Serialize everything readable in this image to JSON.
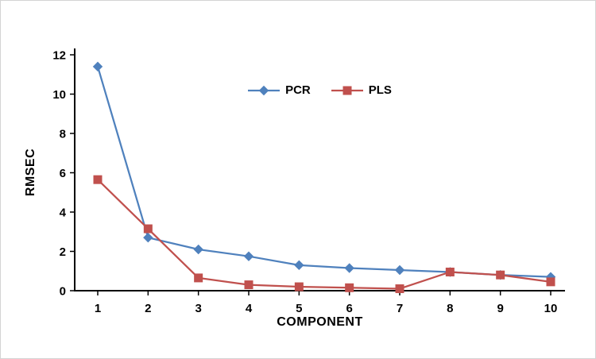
{
  "chart_data": {
    "type": "line",
    "x": [
      1,
      2,
      3,
      4,
      5,
      6,
      7,
      8,
      9,
      10
    ],
    "series": [
      {
        "name": "PCR",
        "color": "#4F81BD",
        "marker": "diamond",
        "values": [
          11.4,
          2.7,
          2.1,
          1.75,
          1.3,
          1.15,
          1.05,
          0.95,
          0.8,
          0.7
        ]
      },
      {
        "name": "PLS",
        "color": "#C0504D",
        "marker": "square",
        "values": [
          5.65,
          3.15,
          0.65,
          0.3,
          0.2,
          0.15,
          0.1,
          0.95,
          0.8,
          0.45
        ]
      }
    ],
    "title": "",
    "xlabel": "COMPONENT",
    "ylabel": "RMSEC",
    "ylim": [
      0,
      12
    ],
    "yticks": [
      0,
      2,
      4,
      6,
      8,
      10,
      12
    ],
    "grid": false,
    "legend_position": "top-center-inside",
    "axis_color": "#000000",
    "background_color": "#ffffff"
  }
}
